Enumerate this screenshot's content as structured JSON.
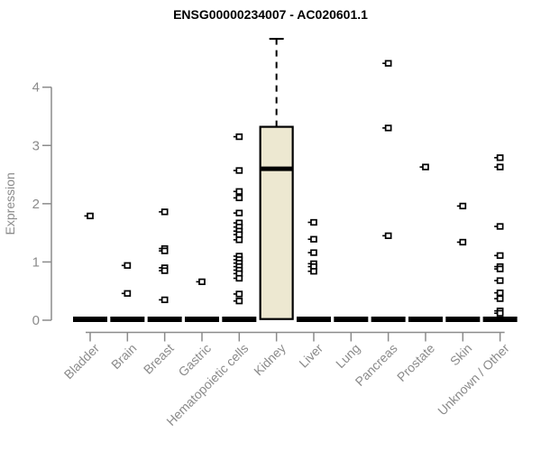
{
  "window": {
    "background": "#FFFFFF"
  },
  "chart_data": {
    "type": "boxplot",
    "title": "ENSG00000234007 - AC020601.1",
    "ylabel": "Expression",
    "xlabel": "",
    "ylim": [
      0,
      4.9
    ],
    "yticks": [
      0,
      1,
      2,
      3,
      4
    ],
    "grid": false,
    "legend": "none",
    "marker": "open-square",
    "categories": [
      "Bladder",
      "Brain",
      "Breast",
      "Gastric",
      "Hematopoietic cells",
      "Kidney",
      "Liver",
      "Lung",
      "Pancreas",
      "Prostate",
      "Skin",
      "Unknown / Other"
    ],
    "series": [
      {
        "name": "Bladder",
        "box": {
          "q1": 0,
          "median": 0,
          "q3": 0,
          "whisker_low": 0,
          "whisker_high": 0
        },
        "points": [
          1.79
        ]
      },
      {
        "name": "Brain",
        "box": {
          "q1": 0,
          "median": 0,
          "q3": 0,
          "whisker_low": 0,
          "whisker_high": 0
        },
        "points": [
          0.94,
          0.46
        ]
      },
      {
        "name": "Breast",
        "box": {
          "q1": 0,
          "median": 0,
          "q3": 0,
          "whisker_low": 0,
          "whisker_high": 0
        },
        "points": [
          1.86,
          1.23,
          1.19,
          0.9,
          0.85,
          0.35
        ]
      },
      {
        "name": "Gastric",
        "box": {
          "q1": 0,
          "median": 0,
          "q3": 0,
          "whisker_low": 0,
          "whisker_high": 0
        },
        "points": [
          0.66
        ]
      },
      {
        "name": "Hematopoietic cells",
        "box": {
          "q1": 0,
          "median": 0,
          "q3": 0,
          "whisker_low": 0,
          "whisker_high": 0
        },
        "points": [
          3.15,
          2.57,
          2.21,
          2.1,
          1.84,
          1.67,
          1.6,
          1.53,
          1.47,
          1.38,
          1.1,
          1.04,
          0.98,
          0.92,
          0.86,
          0.8,
          0.72,
          0.45,
          0.33
        ]
      },
      {
        "name": "Kidney",
        "box": {
          "q1": 0.02,
          "median": 2.6,
          "q3": 3.32,
          "whisker_low": 0.02,
          "whisker_high": 4.83
        },
        "points": []
      },
      {
        "name": "Liver",
        "box": {
          "q1": 0,
          "median": 0,
          "q3": 0,
          "whisker_low": 0,
          "whisker_high": 0
        },
        "points": [
          1.68,
          1.39,
          1.16,
          0.97,
          0.92,
          0.84
        ]
      },
      {
        "name": "Lung",
        "box": {
          "q1": 0,
          "median": 0,
          "q3": 0,
          "whisker_low": 0,
          "whisker_high": 0
        },
        "points": []
      },
      {
        "name": "Pancreas",
        "box": {
          "q1": 0,
          "median": 0,
          "q3": 0,
          "whisker_low": 0,
          "whisker_high": 0
        },
        "points": [
          4.41,
          3.3,
          1.45
        ]
      },
      {
        "name": "Prostate",
        "box": {
          "q1": 0,
          "median": 0,
          "q3": 0,
          "whisker_low": 0,
          "whisker_high": 0
        },
        "points": [
          2.63
        ]
      },
      {
        "name": "Skin",
        "box": {
          "q1": 0,
          "median": 0,
          "q3": 0,
          "whisker_low": 0,
          "whisker_high": 0
        },
        "points": [
          1.96,
          1.34
        ]
      },
      {
        "name": "Unknown / Other",
        "box": {
          "q1": 0,
          "median": 0,
          "q3": 0,
          "whisker_low": 0,
          "whisker_high": 0
        },
        "points": [
          2.79,
          2.63,
          1.61,
          1.11,
          0.92,
          0.88,
          0.68,
          0.47,
          0.37,
          0.16,
          0.12
        ]
      }
    ],
    "colors": {
      "box_fill": "#EDE8D1",
      "box_border": "#000000",
      "median": "#000000",
      "whisker": "#000000",
      "point": "#000000",
      "axis": "#8B8B8B",
      "tick_label": "#8B8B8B",
      "title": "#000000",
      "background": "#FFFFFF"
    }
  }
}
